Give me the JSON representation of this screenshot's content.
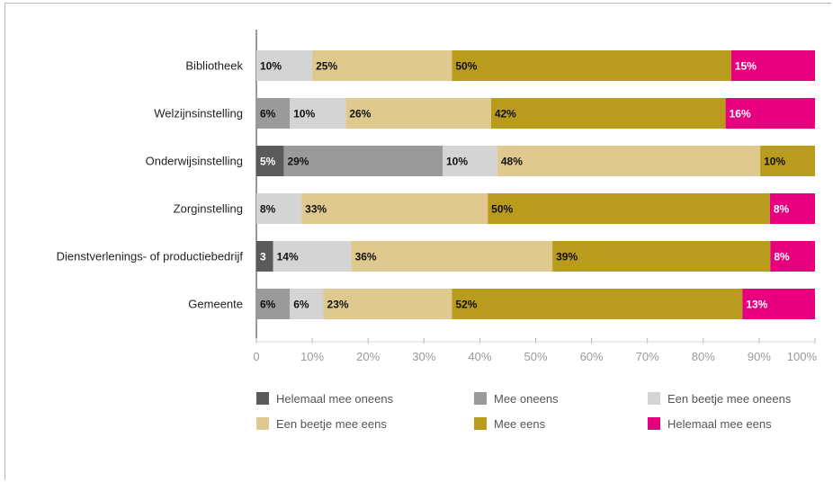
{
  "chart_data": {
    "type": "bar",
    "orientation": "horizontal",
    "stacked": true,
    "categories": [
      "Bibliotheek",
      "Welzijnsinstelling",
      "Onderwijsinstelling",
      "Zorginstelling",
      "Dienstverlenings- of productiebedrijf",
      "Gemeente"
    ],
    "series": [
      {
        "name": "Helemaal mee oneens",
        "color": "#5a5a5a",
        "label_color": "#ffffff",
        "values": [
          0,
          0,
          5,
          0,
          3,
          0
        ],
        "labels": [
          "",
          "",
          "5%",
          "",
          "3",
          ""
        ]
      },
      {
        "name": "Mee oneens",
        "color": "#9a9a9a",
        "label_color": "#111111",
        "values": [
          0,
          6,
          29,
          0,
          0,
          6
        ],
        "labels": [
          "",
          "6%",
          "29%",
          "",
          "",
          "6%"
        ]
      },
      {
        "name": "Een beetje mee oneens",
        "color": "#d4d4d4",
        "label_color": "#111111",
        "values": [
          10,
          10,
          10,
          8,
          14,
          6
        ],
        "labels": [
          "10%",
          "10%",
          "10%",
          "8%",
          "14%",
          "6%"
        ]
      },
      {
        "name": "Een beetje mee eens",
        "color": "#dfc98e",
        "label_color": "#111111",
        "values": [
          25,
          26,
          48,
          33,
          36,
          23
        ],
        "labels": [
          "25%",
          "26%",
          "48%",
          "33%",
          "36%",
          "23%"
        ]
      },
      {
        "name": "Mee eens",
        "color": "#b99b1e",
        "label_color": "#111111",
        "values": [
          50,
          42,
          10,
          50,
          39,
          52
        ],
        "labels": [
          "50%",
          "42%",
          "10%",
          "50%",
          "39%",
          "52%"
        ]
      },
      {
        "name": "Helemaal mee eens",
        "color": "#e6007e",
        "label_color": "#ffffff",
        "values": [
          15,
          16,
          0,
          8,
          8,
          13
        ],
        "labels": [
          "15%",
          "16%",
          "",
          "8%",
          "8%",
          "13%"
        ]
      }
    ],
    "xlim": [
      0,
      100
    ],
    "x_ticks": [
      "0",
      "10%",
      "20%",
      "30%",
      "40%",
      "50%",
      "60%",
      "70%",
      "80%",
      "90%",
      "100%"
    ],
    "grid": false,
    "legend_position": "bottom",
    "title": "",
    "xlabel": "",
    "ylabel": ""
  }
}
